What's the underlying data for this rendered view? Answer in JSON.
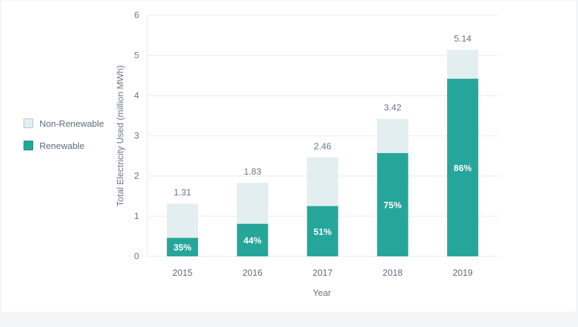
{
  "chart_data": {
    "type": "bar",
    "stacked": true,
    "categories": [
      "2015",
      "2016",
      "2017",
      "2018",
      "2019"
    ],
    "totals": [
      1.31,
      1.83,
      2.46,
      3.42,
      5.14
    ],
    "total_labels": [
      "1.31",
      "1.83",
      "2.46",
      "3.42",
      "5.14"
    ],
    "renewable_share_labels": [
      "35%",
      "44%",
      "51%",
      "75%",
      "86%"
    ],
    "series": [
      {
        "name": "Renewable",
        "values": [
          0.46,
          0.81,
          1.25,
          2.57,
          4.42
        ],
        "color": "#26a69a"
      },
      {
        "name": "Non-Renewable",
        "values": [
          0.85,
          1.02,
          1.21,
          0.85,
          0.72
        ],
        "color": "#e3eef0"
      }
    ],
    "xlabel": "Year",
    "ylabel": "Total Electricity Used (million MWh)",
    "ylim": [
      0,
      6
    ],
    "yticks": [
      "0",
      "1",
      "2",
      "3",
      "4",
      "5",
      "6"
    ],
    "grid": true,
    "legend_position": "left"
  },
  "legend": {
    "items": [
      {
        "label": "Non-Renewable",
        "color": "#e3eef0",
        "border": "#b9c7cb"
      },
      {
        "label": "Renewable",
        "color": "#26a69a",
        "border": "#1e8a80"
      }
    ]
  }
}
